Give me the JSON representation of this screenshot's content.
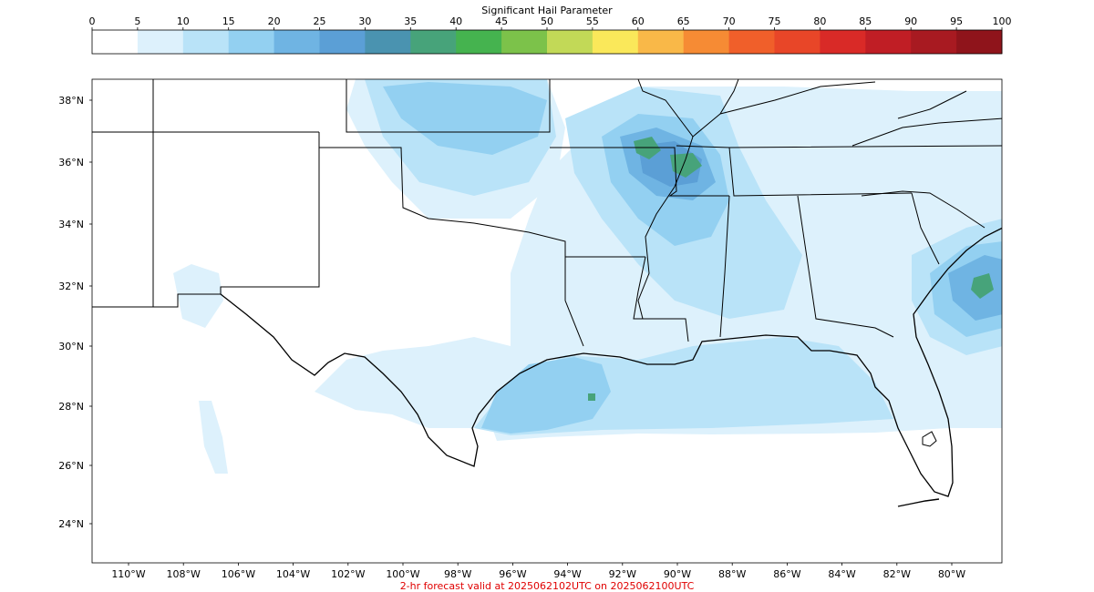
{
  "colorbar": {
    "title": "Significant Hail Parameter",
    "ticks": [
      "0",
      "5",
      "10",
      "15",
      "20",
      "25",
      "30",
      "35",
      "40",
      "45",
      "50",
      "55",
      "60",
      "65",
      "70",
      "75",
      "80",
      "85",
      "90",
      "95",
      "100"
    ],
    "colors": [
      "#ffffff",
      "#ddf1fc",
      "#b9e3f8",
      "#93d0f1",
      "#6fb4e3",
      "#5b9fd6",
      "#4a93b0",
      "#47a37a",
      "#45b34f",
      "#7cc24a",
      "#c2d957",
      "#fae85a",
      "#f9b848",
      "#f68b34",
      "#f05f2a",
      "#e84628",
      "#d92a27",
      "#c01e25",
      "#a81a21",
      "#8f141b"
    ]
  },
  "map": {
    "lat_labels": [
      "38°N",
      "36°N",
      "34°N",
      "32°N",
      "30°N",
      "28°N",
      "26°N",
      "24°N"
    ],
    "lon_labels": [
      "110°W",
      "108°W",
      "106°W",
      "104°W",
      "102°W",
      "100°W",
      "98°W",
      "96°W",
      "94°W",
      "92°W",
      "90°W",
      "88°W",
      "86°W",
      "84°W",
      "82°W",
      "80°W"
    ]
  },
  "footer": {
    "caption": "2-hr forecast valid at 2025062102UTC on 2025062100UTC",
    "caption_color": "#e00000"
  }
}
